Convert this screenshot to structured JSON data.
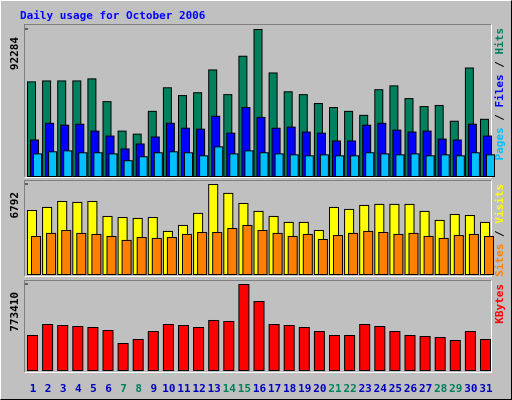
{
  "chart_data": {
    "type": "bar",
    "title": "Daily usage for October 2006",
    "categories": [
      "1",
      "2",
      "3",
      "4",
      "5",
      "6",
      "7",
      "8",
      "9",
      "10",
      "11",
      "12",
      "13",
      "14",
      "15",
      "16",
      "17",
      "18",
      "19",
      "20",
      "21",
      "22",
      "23",
      "24",
      "25",
      "26",
      "27",
      "28",
      "29",
      "30",
      "31"
    ],
    "category_colors": [
      "#0000c0",
      "#0000c0",
      "#0000c0",
      "#0000c0",
      "#0000c0",
      "#0000c0",
      "#00805c",
      "#00805c",
      "#0000c0",
      "#0000c0",
      "#0000c0",
      "#0000c0",
      "#0000c0",
      "#00805c",
      "#00805c",
      "#0000c0",
      "#0000c0",
      "#0000c0",
      "#0000c0",
      "#0000c0",
      "#00805c",
      "#00805c",
      "#0000c0",
      "#0000c0",
      "#0000c0",
      "#0000c0",
      "#0000c0",
      "#00805c",
      "#00805c",
      "#0000c0",
      "#0000c0"
    ],
    "legend_separator": " / ",
    "panels": [
      {
        "ylim": [
          0,
          92284
        ],
        "yticks": [
          92284
        ],
        "series": [
          {
            "name": "Hits",
            "color": "#00805c",
            "values": [
              59400,
              60000,
              60000,
              60000,
              61300,
              47000,
              28500,
              26600,
              40900,
              55700,
              50800,
              52600,
              66900,
              51400,
              75500,
              92284,
              65000,
              53200,
              51400,
              45800,
              43300,
              40900,
              38400,
              54500,
              56900,
              48900,
              43900,
              44600,
              34700,
              68100,
              35900
            ]
          },
          {
            "name": "Files",
            "color": "#0000ff",
            "values": [
              22900,
              33400,
              32200,
              32800,
              28500,
              25400,
              17300,
              20400,
              24800,
              33400,
              30300,
              29700,
              37800,
              27200,
              43300,
              37100,
              30300,
              31000,
              27900,
              27200,
              22300,
              22300,
              32200,
              33400,
              29100,
              27900,
              28500,
              23500,
              22900,
              32800,
              25400
            ]
          },
          {
            "name": "Pages",
            "color": "#00c0ff",
            "values": [
              14200,
              15500,
              16100,
              14900,
              14900,
              14200,
              9900,
              12400,
              14900,
              15500,
              14900,
              13000,
              18600,
              14200,
              16100,
              14900,
              14200,
              13600,
              13000,
              13600,
              13000,
              13000,
              14900,
              14200,
              13600,
              14200,
              13000,
              13600,
              13000,
              14900,
              13600
            ]
          }
        ]
      },
      {
        "ylim": [
          0,
          6792
        ],
        "yticks": [
          6792
        ],
        "series": [
          {
            "name": "Visits",
            "color": "#ffff00",
            "values": [
              4830,
              5060,
              5510,
              5440,
              5510,
              4380,
              4300,
              4230,
              4300,
              3250,
              3700,
              4610,
              6792,
              6120,
              5360,
              4760,
              4380,
              3930,
              3930,
              3320,
              5060,
              4910,
              5210,
              5290,
              5290,
              5290,
              4760,
              4080,
              4530,
              4450,
              3930
            ]
          },
          {
            "name": "Sites",
            "color": "#ff8000",
            "values": [
              2870,
              3100,
              3320,
              3100,
              3020,
              2870,
              2570,
              2790,
              2720,
              2790,
              3020,
              3170,
              3170,
              3470,
              3700,
              3320,
              3100,
              2870,
              3020,
              2640,
              2940,
              3100,
              3250,
              3170,
              3020,
              3100,
              2870,
              2720,
              2940,
              3020,
              2870
            ]
          }
        ]
      },
      {
        "ylim": [
          0,
          773410
        ],
        "yticks": [
          773410
        ],
        "series": [
          {
            "name": "KBytes",
            "color": "#ff0000",
            "values": [
              314800,
              413700,
              404700,
              395700,
              386700,
              359700,
              242800,
              278800,
              350700,
              413700,
              404700,
              386700,
              449700,
              440700,
              773410,
              620500,
              413700,
              404700,
              386700,
              350700,
              314800,
              314800,
              413700,
              395700,
              350700,
              314800,
              305800,
              296800,
              269800,
              350700,
              278800
            ]
          }
        ]
      }
    ]
  }
}
